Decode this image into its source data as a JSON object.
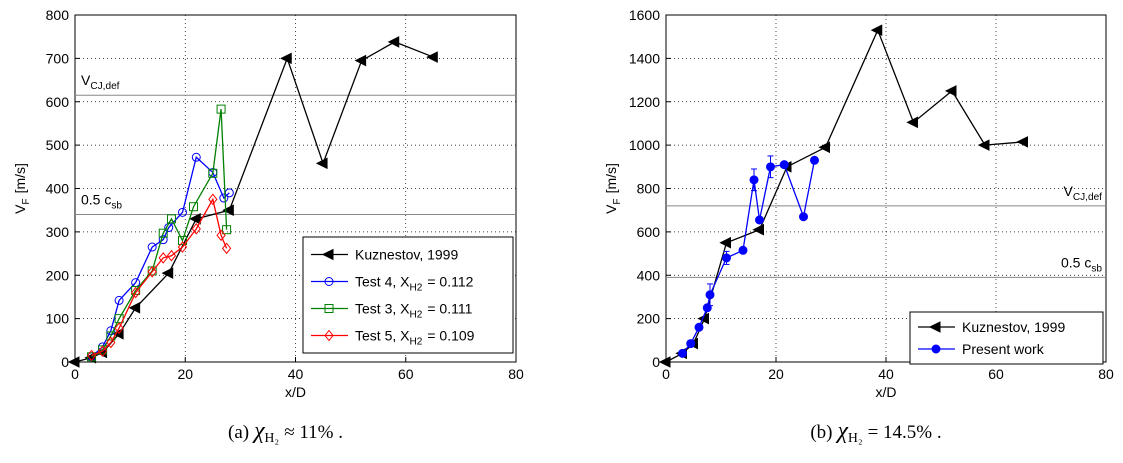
{
  "chart_data": [
    {
      "type": "line",
      "x_label": "x/D",
      "y_label": "V",
      "y_label_sub": "F",
      "y_label_tail": "[m/s]",
      "xlim": [
        0,
        80
      ],
      "xticks": [
        0,
        20,
        40,
        60,
        80
      ],
      "ylim": [
        0,
        800
      ],
      "yticks": [
        0,
        100,
        200,
        300,
        400,
        500,
        600,
        700,
        800
      ],
      "grid": true,
      "legend": "lower right",
      "hlines": [
        {
          "value": 615,
          "label": "V",
          "label_sub": "CJ,def"
        },
        {
          "value": 340,
          "label": "0.5 c",
          "label_sub": "sb"
        }
      ],
      "series": [
        {
          "name": "Kuznestov, 1999",
          "color": "#000000",
          "marker": "triangle-left",
          "filled": true,
          "x": [
            0,
            3,
            5,
            8,
            11,
            17,
            22,
            28,
            38.5,
            45,
            52,
            58,
            65
          ],
          "values": [
            0,
            10,
            22,
            65,
            125,
            205,
            330,
            350,
            700,
            458,
            695,
            738,
            703
          ]
        },
        {
          "name": "Test 4, X",
          "name_sub": "H2",
          "name_tail": "= 0.112",
          "color": "#0000ff",
          "marker": "circle",
          "filled": false,
          "x": [
            3,
            5,
            6.5,
            8,
            11,
            14,
            16,
            17,
            19.5,
            22,
            25,
            27,
            28
          ],
          "values": [
            12,
            35,
            72,
            142,
            183,
            265,
            282,
            310,
            345,
            472,
            437,
            378,
            390
          ]
        },
        {
          "name": "Test 3, X",
          "name_sub": "H2",
          "name_tail": "= 0.111",
          "color": "#008000",
          "marker": "square",
          "filled": false,
          "x": [
            3,
            5,
            6.5,
            8,
            11,
            14,
            16,
            17.5,
            19.5,
            21.5,
            25,
            26.5,
            27.5
          ],
          "values": [
            12,
            28,
            60,
            100,
            165,
            210,
            297,
            330,
            280,
            358,
            435,
            583,
            305
          ]
        },
        {
          "name": "Test 5, X",
          "name_sub": "H2",
          "name_tail": "= 0.109",
          "color": "#ff0000",
          "marker": "diamond",
          "filled": false,
          "x": [
            3,
            5,
            6.5,
            8,
            11,
            14,
            16,
            17.5,
            19.5,
            22,
            25,
            26.5,
            27.5
          ],
          "values": [
            15,
            25,
            45,
            78,
            160,
            208,
            240,
            245,
            265,
            307,
            375,
            292,
            262
          ]
        }
      ],
      "caption": {
        "prefix": "(a)",
        "symbol": "χ",
        "sub": "H₂",
        "suffix": "≈ 11% ."
      }
    },
    {
      "type": "line",
      "x_label": "x/D",
      "y_label": "V",
      "y_label_sub": "F",
      "y_label_tail": "[m/s]",
      "xlim": [
        0,
        80
      ],
      "xticks": [
        0,
        20,
        40,
        60,
        80
      ],
      "ylim": [
        0,
        1600
      ],
      "yticks": [
        0,
        200,
        400,
        600,
        800,
        1000,
        1200,
        1400,
        1600
      ],
      "grid": true,
      "legend": "lower right",
      "hlines": [
        {
          "value": 720,
          "label": "V",
          "label_sub": "CJ,def"
        },
        {
          "value": 390,
          "label": "0.5 c",
          "label_sub": "sb"
        }
      ],
      "series": [
        {
          "name": "Kuznestov, 1999",
          "color": "#000000",
          "marker": "triangle-left",
          "filled": true,
          "x": [
            0,
            3,
            5,
            7,
            11,
            17,
            22,
            29,
            38.5,
            45,
            52,
            58,
            65
          ],
          "values": [
            0,
            40,
            85,
            200,
            550,
            610,
            900,
            990,
            1530,
            1105,
            1250,
            1000,
            1015
          ]
        },
        {
          "name": "Present work",
          "color": "#0000ff",
          "marker": "circle",
          "filled": true,
          "x": [
            3,
            4.5,
            6,
            7.5,
            8,
            11,
            14,
            16,
            17,
            19,
            21.5,
            25,
            27
          ],
          "values": [
            40,
            85,
            160,
            250,
            310,
            480,
            515,
            840,
            655,
            900,
            910,
            670,
            930
          ],
          "errors": [
            null,
            null,
            null,
            null,
            50,
            30,
            null,
            50,
            null,
            50,
            null,
            null,
            null
          ]
        }
      ],
      "caption": {
        "prefix": "(b)",
        "symbol": "χ",
        "sub": "H₂",
        "suffix": "= 14.5% ."
      }
    }
  ]
}
